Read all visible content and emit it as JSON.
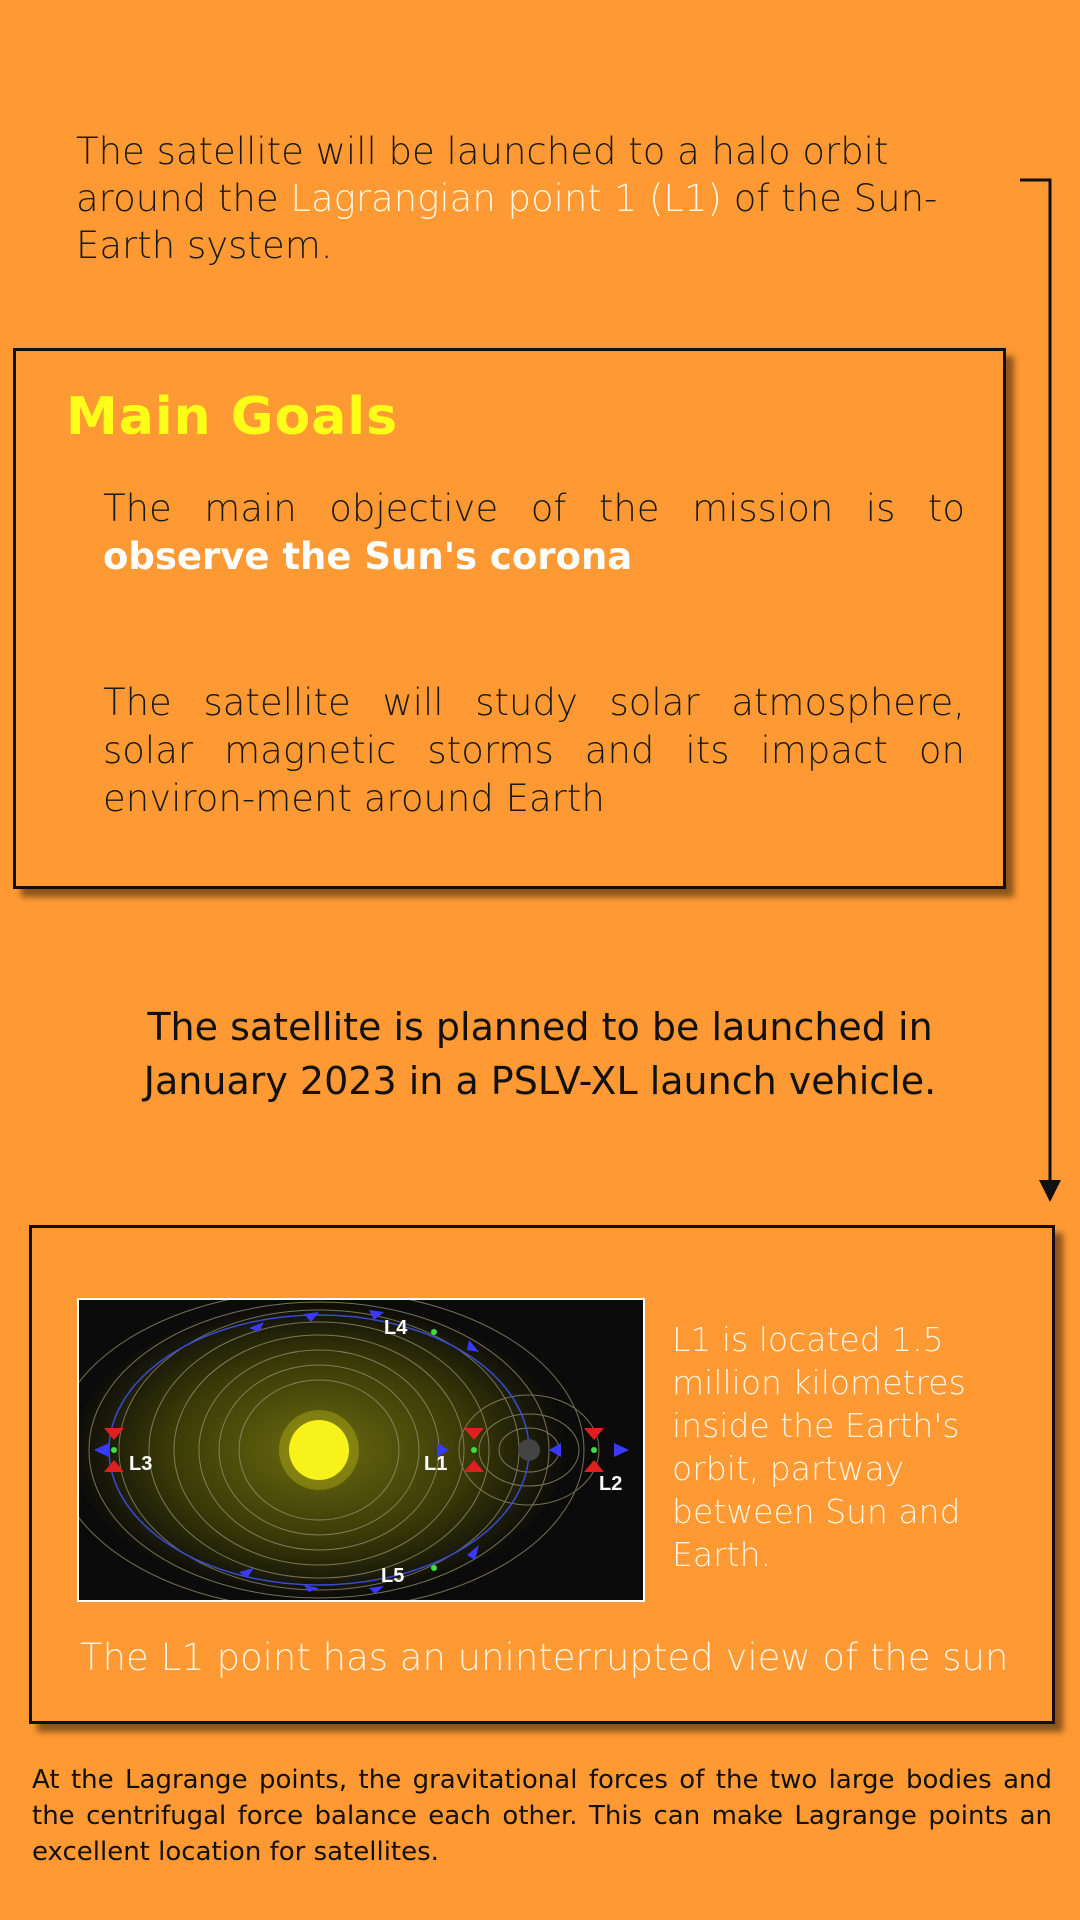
{
  "intro": {
    "before": "The satellite will be launched to a halo orbit around the ",
    "highlight": "Lagrangian point 1 (L1)",
    "after": " of the Sun-Earth system."
  },
  "goals": {
    "title": "Main Goals",
    "objective_prefix": "The main objective of the mission is to ",
    "objective_bold": "observe the Sun's corona",
    "study": "The satellite will study solar atmosphere, solar magnetic storms and its impact on environ-ment around Earth"
  },
  "launch": {
    "line1": "The satellite is planned to be launched in",
    "line2": "January 2023 in a PSLV-XL launch vehicle."
  },
  "lagrange": {
    "labels": {
      "l1": "L1",
      "l2": "L2",
      "l3": "L3",
      "l4": "L4",
      "l5": "L5"
    },
    "description": "L1 is located 1.5 million kilometres inside the Earth's orbit, partway between Sun and Earth.",
    "view": "The L1 point has an uninterrupted view of the sun"
  },
  "footer": "At the Lagrange points, the gravitational forces of the two large bodies and the centrifugal force balance each other. This can make Lagrange points an excellent location for satellites.",
  "colors": {
    "background": "#FF9933",
    "title": "#FFFF1A",
    "highlight": "#fff5e0"
  }
}
